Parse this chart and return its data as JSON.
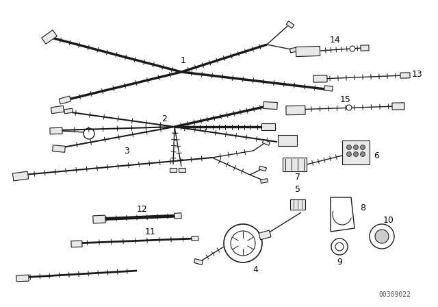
{
  "background_color": "#ffffff",
  "diagram_id": "00309022",
  "wire_color": "#1a1a1a",
  "label_color": "#000000",
  "figsize": [
    6.4,
    4.48
  ],
  "dpi": 100
}
